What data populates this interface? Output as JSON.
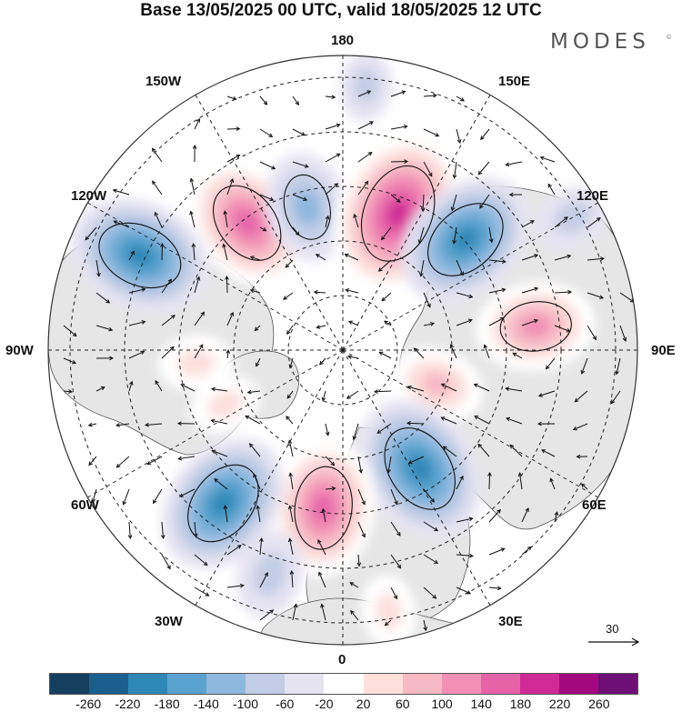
{
  "title": "Base 13/05/2025 00 UTC, valid 18/05/2025 12 UTC",
  "brand": "MODES",
  "brand_mark": "©",
  "longitude_labels": {
    "lon_180": "180",
    "lon_150w": "150W",
    "lon_150e": "150E",
    "lon_120w": "120W",
    "lon_120e": "120E",
    "lon_90w": "90W",
    "lon_90e": "90E",
    "lon_60w": "60W",
    "lon_60e": "60E",
    "lon_30w": "30W",
    "lon_30e": "30E",
    "lon_0": "0"
  },
  "vector_scale": "30",
  "colorbar": {
    "colors": [
      "#153e5f",
      "#1c5f8c",
      "#2f87b8",
      "#5aa3cf",
      "#8fb8de",
      "#c3cde6",
      "#e6e3f1",
      "#ffffff",
      "#fde0dc",
      "#f7b9c4",
      "#f18fb5",
      "#e763a8",
      "#cf2a95",
      "#a4087f",
      "#6e0f73"
    ],
    "ticks": [
      "-260",
      "-220",
      "-180",
      "-140",
      "-100",
      "-60",
      "-20",
      "20",
      "60",
      "100",
      "140",
      "180",
      "220",
      "260"
    ]
  },
  "anomaly_centers": [
    {
      "lon": -143,
      "colat": 27,
      "value": 175
    },
    {
      "lon": -166,
      "colat": 25,
      "value": -115
    },
    {
      "lon": -115,
      "colat": 38,
      "value": -185
    },
    {
      "lon": 158,
      "colat": 25,
      "value": 230
    },
    {
      "lon": 132,
      "colat": 28,
      "value": -185
    },
    {
      "lon": 97,
      "colat": 33,
      "value": 135
    },
    {
      "lon": 70,
      "colat": 17,
      "value": 85
    },
    {
      "lon": 33,
      "colat": 24,
      "value": -195
    },
    {
      "lon": -7,
      "colat": 27,
      "value": 175
    },
    {
      "lon": -38,
      "colat": 33,
      "value": -185
    },
    {
      "lon": -18,
      "colat": 40,
      "value": -70
    },
    {
      "lon": -85,
      "colat": 25,
      "value": 45
    },
    {
      "lon": -65,
      "colat": 22,
      "value": 40
    },
    {
      "lon": 10,
      "colat": 45,
      "value": 40
    },
    {
      "lon": 175,
      "colat": 45,
      "value": -35
    },
    {
      "lon": 120,
      "colat": 45,
      "value": -50
    }
  ]
}
